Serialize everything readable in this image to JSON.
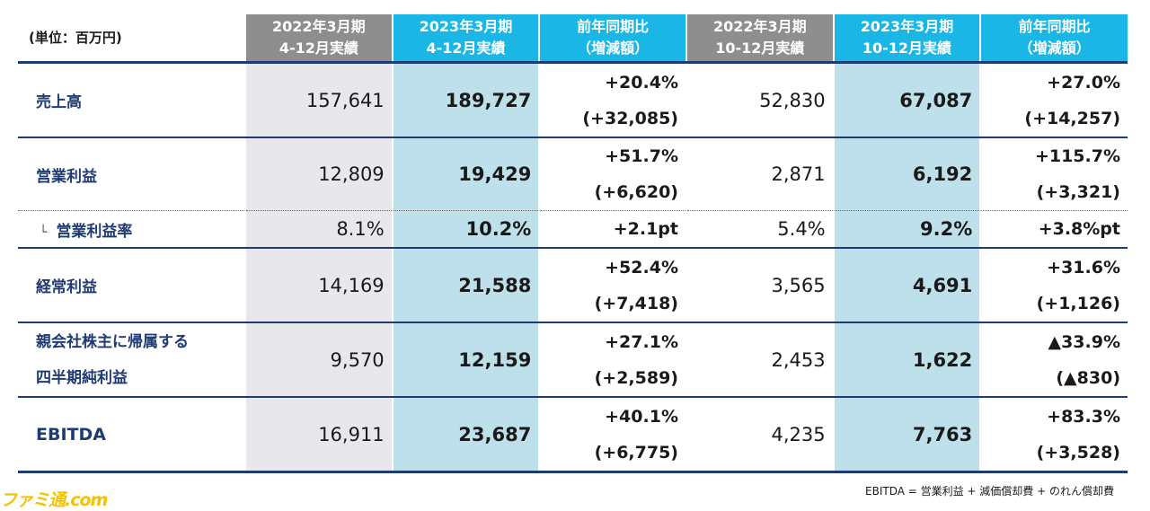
{
  "table": {
    "unit_label": "(単位：百万円)",
    "headers": [
      {
        "line1": "2022年3月期",
        "line2": "4-12月実績"
      },
      {
        "line1": "2023年3月期",
        "line2": "4-12月実績"
      },
      {
        "line1": "前年同期比",
        "line2": "（増減額）"
      },
      {
        "line1": "2022年3月期",
        "line2": "10-12月実績"
      },
      {
        "line1": "2023年3月期",
        "line2": "10-12月実績"
      },
      {
        "line1": "前年同期比",
        "line2": "（増減額）"
      }
    ],
    "rows": [
      {
        "label": "売上高",
        "v1": "157,641",
        "v2": "189,727",
        "c1a": "+20.4%",
        "c1b": "(+32,085)",
        "v3": "52,830",
        "v4": "67,087",
        "c2a": "+27.0%",
        "c2b": "(+14,257)"
      },
      {
        "label": "営業利益",
        "v1": "12,809",
        "v2": "19,429",
        "c1a": "+51.7%",
        "c1b": "(+6,620)",
        "v3": "2,871",
        "v4": "6,192",
        "c2a": "+115.7%",
        "c2b": "(+3,321)"
      },
      {
        "label_mark": "└",
        "label": "営業利益率",
        "v1": "8.1%",
        "v2": "10.2%",
        "c1": "+2.1pt",
        "v3": "5.4%",
        "v4": "9.2%",
        "c2": "+3.8%pt"
      },
      {
        "label": "経常利益",
        "v1": "14,169",
        "v2": "21,588",
        "c1a": "+52.4%",
        "c1b": "(+7,418)",
        "v3": "3,565",
        "v4": "4,691",
        "c2a": "+31.6%",
        "c2b": "(+1,126)"
      },
      {
        "label_line1": "親会社株主に帰属する",
        "label_line2": "四半期純利益",
        "v1": "9,570",
        "v2": "12,159",
        "c1a": "+27.1%",
        "c1b": "(+2,589)",
        "v3": "2,453",
        "v4": "1,622",
        "c2a": "▲33.9%",
        "c2b": "(▲830)"
      },
      {
        "label": "EBITDA",
        "v1": "16,911",
        "v2": "23,687",
        "c1a": "+40.1%",
        "c1b": "(+6,775)",
        "v3": "4,235",
        "v4": "7,763",
        "c2a": "+83.3%",
        "c2b": "(+3,528)"
      }
    ]
  },
  "footnote": "EBITDA = 営業利益 + 減価償却費 + のれん償却費",
  "watermark": "ファミ通.com"
}
